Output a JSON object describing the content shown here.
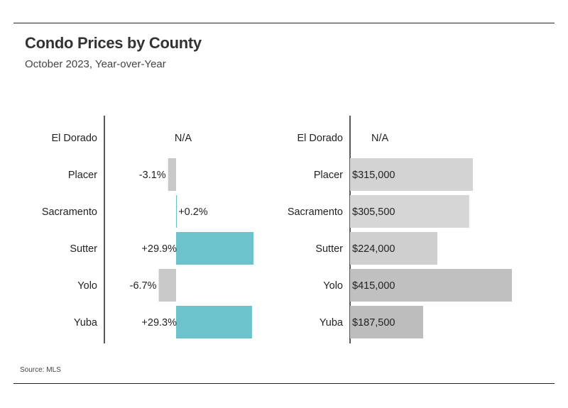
{
  "header": {
    "title": "Condo Prices by County",
    "subtitle": "October 2023, Year-over-Year"
  },
  "footer": {
    "source": "Source: MLS"
  },
  "colors": {
    "positive": "#6cc3cc",
    "negative": "#c8c8c8",
    "price_bar": "#d3d3d3",
    "price_bar_dark": "#c0c0c0",
    "axis": "#222222"
  },
  "chart_data": [
    {
      "type": "bar",
      "orientation": "horizontal",
      "categories": [
        "El Dorado",
        "Placer",
        "Sacramento",
        "Sutter",
        "Yolo",
        "Yuba"
      ],
      "values": [
        null,
        -3.1,
        0.2,
        29.9,
        -6.7,
        29.3
      ],
      "labels": [
        "N/A",
        "-3.1%",
        "+0.2%",
        "+29.9%",
        "-6.7%",
        "+29.3%"
      ],
      "xlim": [
        -27,
        40
      ]
    },
    {
      "type": "bar",
      "orientation": "horizontal",
      "categories": [
        "El Dorado",
        "Placer",
        "Sacramento",
        "Sutter",
        "Yolo",
        "Yuba"
      ],
      "values": [
        null,
        315000,
        305500,
        224000,
        415000,
        187500
      ],
      "labels": [
        "N/A",
        "$315,000",
        "$305,500",
        "$224,000",
        "$415,000",
        "$187,500"
      ],
      "xlim": [
        0,
        415000
      ]
    }
  ]
}
